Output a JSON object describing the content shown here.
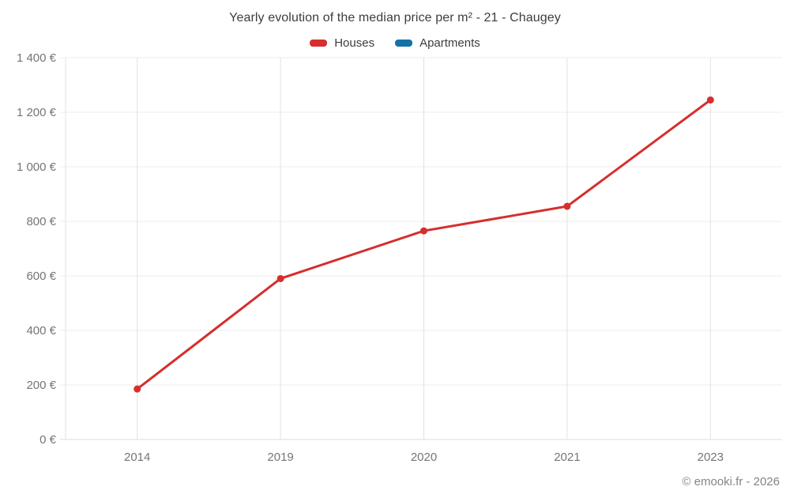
{
  "header": {
    "title": "Yearly evolution of the median price per m² - 21 - Chaugey"
  },
  "legend": {
    "items": [
      {
        "label": "Houses",
        "color": "#d62e2e"
      },
      {
        "label": "Apartments",
        "color": "#1572a8"
      }
    ]
  },
  "footer": {
    "credit": "© emooki.fr - 2026"
  },
  "chart_data": {
    "type": "line",
    "title": "Yearly evolution of the median price per m² - 21 - Chaugey",
    "categories": [
      "2014",
      "2019",
      "2020",
      "2021",
      "2023"
    ],
    "series": [
      {
        "name": "Houses",
        "color": "#d62e2e",
        "values": [
          185,
          590,
          765,
          855,
          1245
        ]
      },
      {
        "name": "Apartments",
        "color": "#1572a8",
        "values": []
      }
    ],
    "xlabel": "",
    "ylabel": "",
    "ylim": [
      0,
      1400
    ],
    "ytick_step": 200,
    "ytick_labels": [
      "0 €",
      "200 €",
      "400 €",
      "600 €",
      "800 €",
      "1 000 €",
      "1 200 €",
      "1 400 €"
    ],
    "grid": true,
    "legend_position": "top",
    "point_radius": 4.5,
    "line_width": 3
  },
  "colors": {
    "background": "#ffffff",
    "grid_horizontal": "#ededed",
    "grid_vertical": "#e2e2e2",
    "axis_line": "#dedede",
    "tick_text": "#757575",
    "title_text": "#3d3d3d",
    "footer_text": "#858585"
  }
}
